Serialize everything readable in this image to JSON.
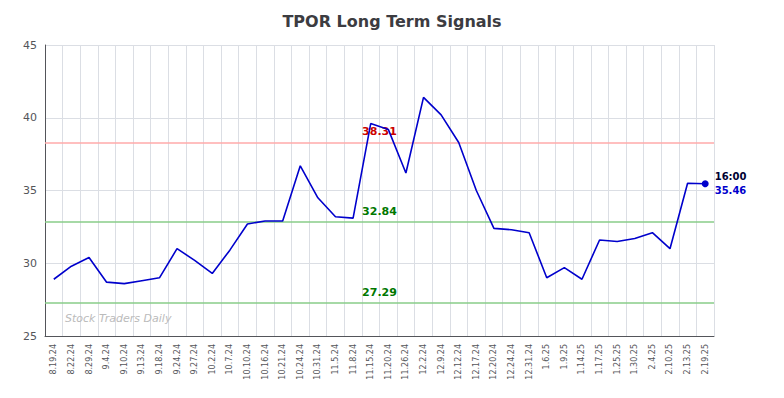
{
  "chart_data": {
    "type": "line",
    "title": "TPOR Long Term Signals",
    "categories": [
      "8.19.24",
      "8.22.24",
      "8.29.24",
      "9.4.24",
      "9.10.24",
      "9.13.24",
      "9.18.24",
      "9.24.24",
      "9.27.24",
      "10.2.24",
      "10.7.24",
      "10.10.24",
      "10.16.24",
      "10.21.24",
      "10.24.24",
      "10.31.24",
      "11.5.24",
      "11.8.24",
      "11.15.24",
      "11.20.24",
      "11.26.24",
      "12.2.24",
      "12.9.24",
      "12.12.24",
      "12.17.24",
      "12.20.24",
      "12.24.24",
      "12.31.24",
      "1.6.25",
      "1.9.25",
      "1.14.25",
      "1.17.25",
      "1.25.25",
      "1.30.25",
      "2.4.25",
      "2.10.25",
      "2.13.25",
      "2.19.25"
    ],
    "values": [
      28.9,
      29.8,
      30.4,
      28.7,
      28.6,
      28.8,
      29.0,
      31.0,
      30.2,
      29.3,
      30.9,
      32.7,
      32.9,
      32.9,
      36.7,
      34.5,
      33.2,
      33.1,
      39.6,
      39.2,
      36.2,
      41.4,
      40.2,
      38.3,
      35.0,
      32.4,
      32.3,
      32.1,
      29.0,
      29.7,
      28.9,
      31.6,
      31.5,
      31.7,
      32.1,
      31.0,
      35.5,
      35.46
    ],
    "color": "#0000cc",
    "ylim": [
      25,
      45
    ],
    "yticks": [
      25,
      30,
      35,
      40,
      45
    ],
    "grid": true,
    "hlines": [
      {
        "value": 38.31,
        "label": "38.31",
        "color": "#ffaaaa",
        "text_color": "#cc0000"
      },
      {
        "value": 32.84,
        "label": "32.84",
        "color": "#88cc88",
        "text_color": "#007700"
      },
      {
        "value": 27.29,
        "label": "27.29",
        "color": "#88cc88",
        "text_color": "#007700"
      }
    ],
    "last_point": {
      "label": "16:00",
      "value": 35.46
    },
    "watermark": "Stock Traders Daily"
  }
}
